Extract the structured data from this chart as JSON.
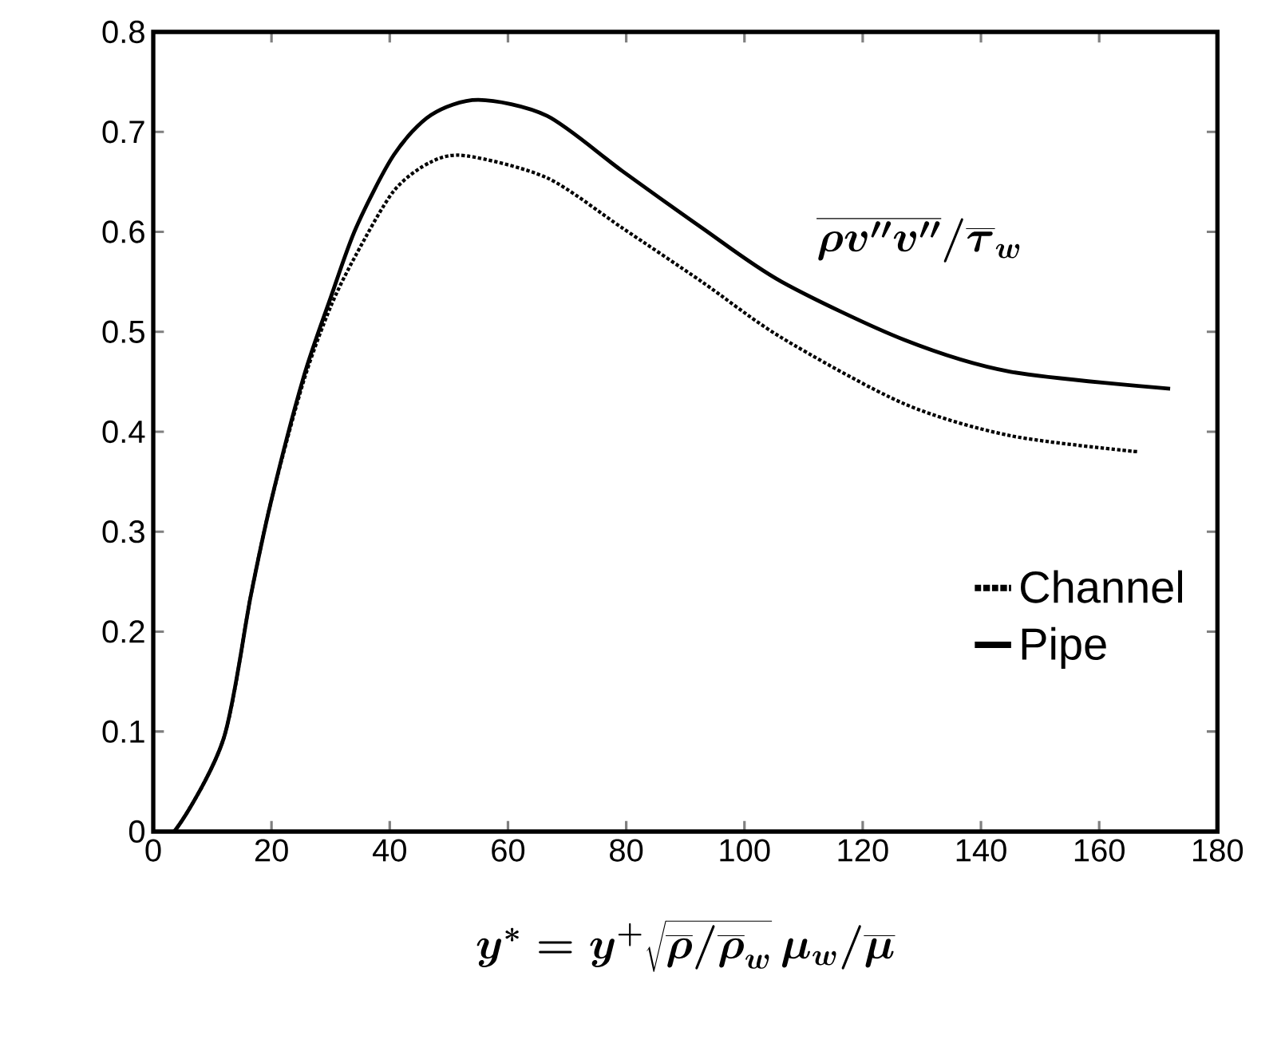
{
  "chart_data": {
    "type": "line",
    "xlabel": "y^* = y^+ \\sqrt{\\overline{\\rho}/\\overline{\\rho}_w}\\, \\mu_w/\\overline{\\mu}",
    "annotations": [
      "\\overline{\\rho v''v''}/\\overline{\\tau}_w"
    ],
    "xlim": [
      0,
      180
    ],
    "ylim": [
      0,
      0.8
    ],
    "xticks": [
      0,
      20,
      40,
      60,
      80,
      100,
      120,
      140,
      160,
      180
    ],
    "yticks": [
      0,
      0.1,
      0.2,
      0.3,
      0.4,
      0.5,
      0.6,
      0.7,
      0.8
    ],
    "legend": "bottom right",
    "grid": false,
    "series": [
      {
        "name": "Channel",
        "color": "#000000",
        "line_style": "dotted",
        "x": [
          0,
          3.8,
          11.9,
          16.5,
          20,
          25.4,
          30,
          34.3,
          40.7,
          47,
          53,
          66.6,
          79.3,
          92.8,
          106.3,
          127,
          145,
          166.5
        ],
        "values": [
          0,
          0.002,
          0.093,
          0.236,
          0.332,
          0.45,
          0.525,
          0.577,
          0.641,
          0.67,
          0.676,
          0.654,
          0.604,
          0.55,
          0.494,
          0.428,
          0.396,
          0.38
        ]
      },
      {
        "name": "Pipe",
        "color": "#000000",
        "line_style": "solid",
        "x": [
          0,
          3.8,
          11.9,
          16.5,
          20,
          25.4,
          30,
          34.3,
          40.7,
          47,
          55,
          66.6,
          79.3,
          92.8,
          106.3,
          127,
          145,
          172
        ],
        "values": [
          0,
          0.002,
          0.093,
          0.236,
          0.332,
          0.454,
          0.534,
          0.604,
          0.677,
          0.717,
          0.732,
          0.716,
          0.661,
          0.604,
          0.55,
          0.492,
          0.46,
          0.443
        ]
      }
    ]
  }
}
